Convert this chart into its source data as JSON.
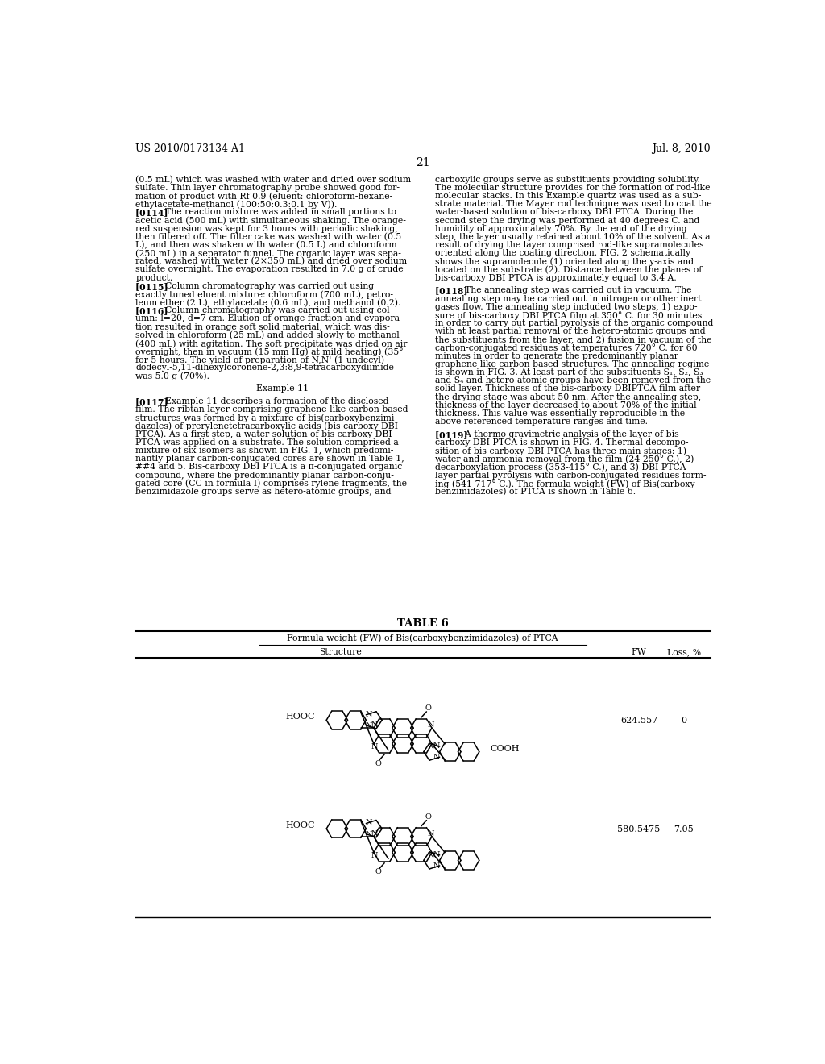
{
  "page_number": "21",
  "patent_number": "US 2010/0173134 A1",
  "patent_date": "Jul. 8, 2010",
  "background_color": "#ffffff",
  "text_color": "#000000",
  "left_column_text": [
    "(0.5 mL) which was washed with water and dried over sodium",
    "sulfate. Thin layer chromatography probe showed good for-",
    "mation of product with Rf 0.9 (eluent: chloroform-hexane-",
    "ethylacetate-methanol (100:50:0.3:0.1 by V)).",
    "[0114]   The reaction mixture was added in small portions to",
    "acetic acid (500 mL) with simultaneous shaking. The orange-",
    "red suspension was kept for 3 hours with periodic shaking,",
    "then filtered off. The filter cake was washed with water (0.5",
    "L), and then was shaken with water (0.5 L) and chloroform",
    "(250 mL) in a separator funnel. The organic layer was sepa-",
    "rated, washed with water (2×350 mL) and dried over sodium",
    "sulfate overnight. The evaporation resulted in 7.0 g of crude",
    "product.",
    "[0115]   Column chromatography was carried out using",
    "exactly tuned eluent mixture: chloroform (700 mL), petro-",
    "leum ether (2 L), ethylacetate (0.6 mL), and methanol (0.2).",
    "[0116]   Column chromatography was carried out using col-",
    "umn: l=20, d=7 cm. Elution of orange fraction and evapora-",
    "tion resulted in orange soft solid material, which was dis-",
    "solved in chloroform (25 mL) and added slowly to methanol",
    "(400 mL) with agitation. The soft precipitate was dried on air",
    "overnight, then in vacuum (15 mm Hg) at mild heating) (35°",
    "for 5 hours. The yield of preparation of N,N'-(1-undecyl)",
    "dodecyl-5,11-dihexylcoronene-2,3:8,9-tetracarboxydiimide",
    "was 5.0 g (70%).",
    "",
    "Example 11",
    "",
    "[0117]   Example 11 describes a formation of the disclosed",
    "film. The ribtan layer comprising graphene-like carbon-based",
    "structures was formed by a mixture of bis(carboxybenzimi-",
    "dazoles) of prerylenetetracarboxylic acids (bis-carboxy DBI",
    "PTCA). As a first step, a water solution of bis-carboxy DBI",
    "PTCA was applied on a substrate. The solution comprised a",
    "mixture of six isomers as shown in FIG. 1, which predomi-",
    "nantly planar carbon-conjugated cores are shown in Table 1,",
    "##4 and 5. Bis-carboxy DBI PTCA is a π-conjugated organic",
    "compound, where the predominantly planar carbon-conju-",
    "gated core (CC in formula I) comprises rylene fragments, the",
    "benzimidazole groups serve as hetero-atomic groups, and"
  ],
  "right_column_text": [
    "carboxylic groups serve as substituents providing solubility.",
    "The molecular structure provides for the formation of rod-like",
    "molecular stacks. In this Example quartz was used as a sub-",
    "strate material. The Mayer rod technique was used to coat the",
    "water-based solution of bis-carboxy DBI PTCA. During the",
    "second step the drying was performed at 40 degrees C. and",
    "humidity of approximately 70%. By the end of the drying",
    "step, the layer usually retained about 10% of the solvent. As a",
    "result of drying the layer comprised rod-like supramolecules",
    "oriented along the coating direction. FIG. 2 schematically",
    "shows the supramolecule (1) oriented along the y-axis and",
    "located on the substrate (2). Distance between the planes of",
    "bis-carboxy DBI PTCA is approximately equal to 3.4 A.",
    "",
    "[0118]   The annealing step was carried out in vacuum. The",
    "annealing step may be carried out in nitrogen or other inert",
    "gases flow. The annealing step included two steps, 1) expo-",
    "sure of bis-carboxy DBI PTCA film at 350° C. for 30 minutes",
    "in order to carry out partial pyrolysis of the organic compound",
    "with at least partial removal of the hetero-atomic groups and",
    "the substituents from the layer, and 2) fusion in vacuum of the",
    "carbon-conjugated residues at temperatures 720° C. for 60",
    "minutes in order to generate the predominantly planar",
    "graphene-like carbon-based structures. The annealing regime",
    "is shown in FIG. 3. At least part of the substituents S₁, S₂, S₃",
    "and S₄ and hetero-atomic groups have been removed from the",
    "solid layer. Thickness of the bis-carboxy DBIPTCA film after",
    "the drying stage was about 50 nm. After the annealing step,",
    "thickness of the layer decreased to about 70% of the initial",
    "thickness. This value was essentially reproducible in the",
    "above referenced temperature ranges and time.",
    "",
    "[0119]   A thermo gravimetric analysis of the layer of bis-",
    "carboxy DBI PTCA is shown in FIG. 4. Thermal decompo-",
    "sition of bis-carboxy DBI PTCA has three main stages: 1)",
    "water and ammonia removal from the film (24-250° C.), 2)",
    "decarboxylation process (353-415° C.), and 3) DBI PTCA",
    "layer partial pyrolysis with carbon-conjugated residues form-",
    "ing (541-717° C.). The formula weight (FW) of Bis(carboxy-",
    "benzimidazoles) of PTCA is shown in Table 6."
  ],
  "table_title": "TABLE 6",
  "table_subtitle": "Formula weight (FW) of Bis(carboxybenzimidazoles) of PTCA",
  "table_headers": [
    "Structure",
    "FW",
    "Loss, %"
  ],
  "table_rows": [
    {
      "fw": "624.557",
      "loss": "0"
    },
    {
      "fw": "580.5475",
      "loss": "7.05"
    }
  ]
}
